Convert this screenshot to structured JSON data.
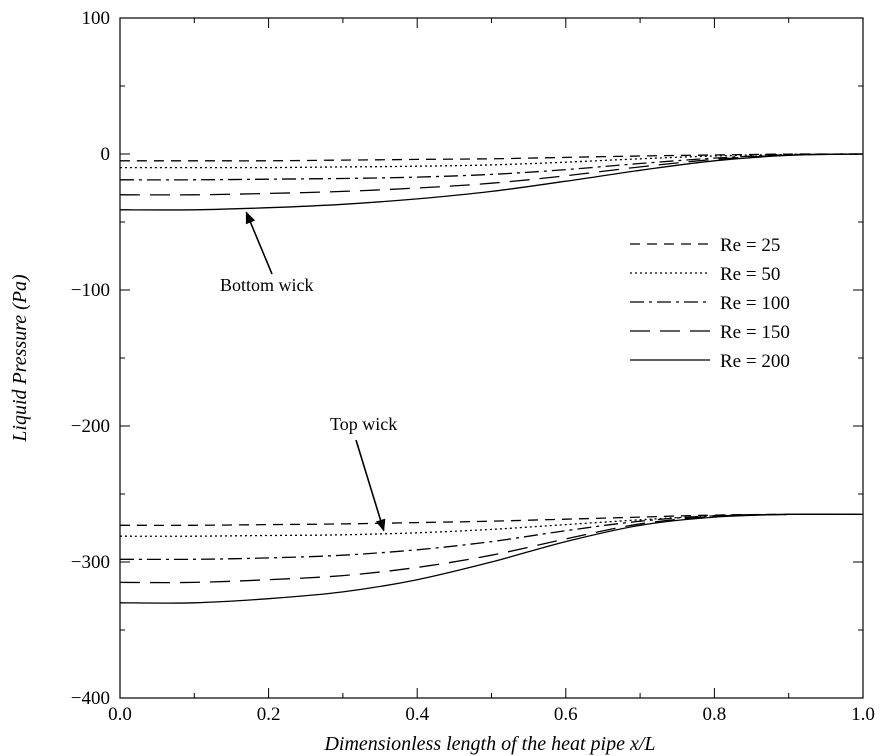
{
  "chart_data": {
    "type": "line",
    "title": "",
    "xlabel": "Dimensionless length of the heat pipe    x/L",
    "ylabel": "Liquid Pressure  (Pa)",
    "xlim": [
      0.0,
      1.0
    ],
    "ylim": [
      -400,
      100
    ],
    "xticks": [
      "0.0",
      "0.2",
      "0.4",
      "0.6",
      "0.8",
      "1.0"
    ],
    "yticks": [
      "100",
      "0",
      "−100",
      "−200",
      "−300",
      "−400"
    ],
    "grid": false,
    "legend_position": "center-right",
    "x": [
      0.0,
      0.1,
      0.2,
      0.3,
      0.4,
      0.5,
      0.6,
      0.7,
      0.8,
      0.9,
      1.0
    ],
    "series": [
      {
        "name": "Re = 25",
        "dash": "dashed",
        "bottom_wick": [
          -5,
          -5,
          -5,
          -4.5,
          -4,
          -3.5,
          -2.5,
          -1.5,
          -0.7,
          -0.1,
          0
        ],
        "top_wick": [
          -273,
          -273,
          -272.5,
          -272,
          -271,
          -270,
          -268.5,
          -267,
          -265.5,
          -265,
          -265
        ]
      },
      {
        "name": "Re = 50",
        "dash": "dotted",
        "bottom_wick": [
          -10,
          -10,
          -10,
          -9.5,
          -9,
          -8,
          -6,
          -3.5,
          -1.5,
          -0.3,
          0
        ],
        "top_wick": [
          -281,
          -281,
          -280.5,
          -280,
          -278.5,
          -276,
          -272.5,
          -269,
          -266,
          -265,
          -265
        ]
      },
      {
        "name": "Re = 100",
        "dash": "dash-dot",
        "bottom_wick": [
          -19,
          -19,
          -18.5,
          -18,
          -17,
          -15,
          -11.5,
          -7,
          -3,
          -0.5,
          0
        ],
        "top_wick": [
          -298,
          -298,
          -297,
          -295,
          -291,
          -285,
          -277,
          -270,
          -266,
          -265,
          -265
        ]
      },
      {
        "name": "Re = 150",
        "dash": "long-dash",
        "bottom_wick": [
          -30,
          -30,
          -29,
          -27.5,
          -25,
          -21.5,
          -16,
          -9.5,
          -4,
          -0.8,
          0
        ],
        "top_wick": [
          -315,
          -315,
          -313,
          -310,
          -304,
          -295,
          -283,
          -272,
          -266.5,
          -265,
          -265
        ]
      },
      {
        "name": "Re = 200",
        "dash": "solid",
        "bottom_wick": [
          -41,
          -41,
          -39.5,
          -37,
          -33,
          -27.5,
          -20,
          -12,
          -5,
          -1,
          0
        ],
        "top_wick": [
          -330,
          -330,
          -327,
          -322,
          -313,
          -300,
          -285,
          -273,
          -267,
          -265,
          -265
        ]
      }
    ],
    "annotations": [
      {
        "text": "Bottom wick",
        "arrow_to": [
          0.17,
          -37
        ]
      },
      {
        "text": "Top wick",
        "arrow_to": [
          0.355,
          -271
        ]
      }
    ]
  }
}
